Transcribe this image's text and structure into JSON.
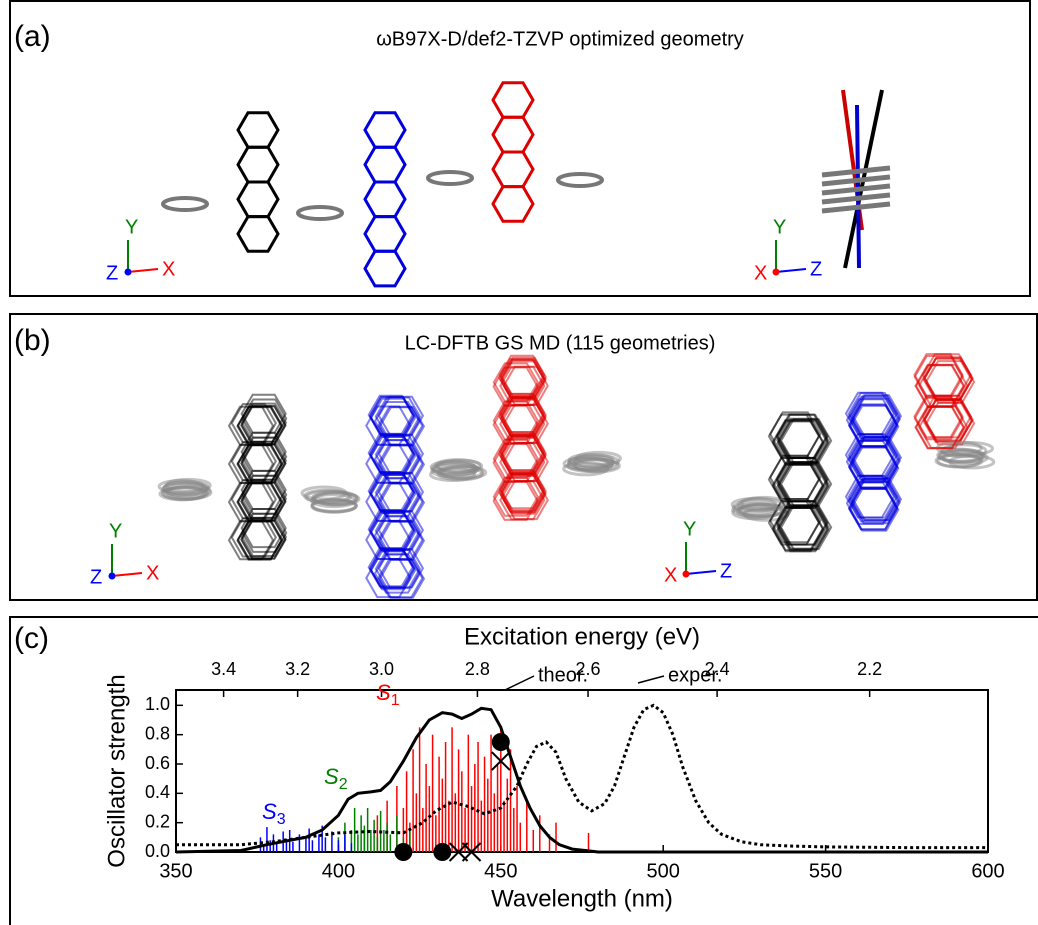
{
  "panel_a": {
    "label": "(a)",
    "title": "ωB97X-D/def2-TZVP optimized geometry",
    "axes_front": [
      "Y",
      "Z",
      "X"
    ],
    "axes_side": [
      "Y",
      "X",
      "Z"
    ]
  },
  "panel_b": {
    "label": "(b)",
    "title": "LC-DFTB GS MD (115 geometries)",
    "axes_front": [
      "Y",
      "Z",
      "X"
    ],
    "axes_side": [
      "Y",
      "X",
      "Z"
    ]
  },
  "chart_data": {
    "type": "spectrum",
    "panel_label": "(c)",
    "x_label": "Wavelength (nm)",
    "y_label": "Oscillator strength",
    "x2_label": "Excitation energy (eV)",
    "xlim": [
      350,
      600
    ],
    "xticks": [
      350,
      400,
      450,
      500,
      550,
      600
    ],
    "ylim": [
      0,
      1.05
    ],
    "yticks": [
      {
        "value": 0,
        "label": "0.0"
      },
      0.2,
      0.4,
      0.6,
      0.8,
      {
        "value": 1,
        "label": "1.0"
      }
    ],
    "x2ticks": [
      3.4,
      3.2,
      {
        "value": 3,
        "label": "3.0"
      },
      2.8,
      2.6,
      2.4,
      2.2
    ],
    "series": [
      {
        "name": "theor.",
        "color": "#000000",
        "dash": "solid",
        "x": [
          350,
          370,
          378,
          385,
          390,
          395,
          400,
          403,
          406,
          410,
          413,
          416,
          420,
          424,
          428,
          432,
          435,
          438,
          441,
          444,
          447,
          450,
          453,
          456,
          459,
          462,
          465,
          468,
          472,
          476,
          480,
          490,
          500,
          550,
          600
        ],
        "values": [
          0,
          0.01,
          0.05,
          0.08,
          0.1,
          0.15,
          0.25,
          0.36,
          0.4,
          0.41,
          0.42,
          0.48,
          0.62,
          0.78,
          0.9,
          0.95,
          0.94,
          0.91,
          0.94,
          0.98,
          0.97,
          0.85,
          0.65,
          0.45,
          0.3,
          0.18,
          0.1,
          0.05,
          0.02,
          0.01,
          0,
          0,
          0,
          0,
          0
        ]
      },
      {
        "name": "exper.",
        "color": "#000000",
        "dash": "dotted",
        "x": [
          350,
          370,
          380,
          390,
          400,
          410,
          420,
          426,
          430,
          435,
          440,
          445,
          450,
          455,
          458,
          461,
          464,
          467,
          470,
          474,
          478,
          482,
          485,
          488,
          491,
          494,
          497,
          500,
          503,
          506,
          510,
          514,
          518,
          524,
          530,
          540,
          550,
          575,
          600
        ],
        "values": [
          0.05,
          0.05,
          0.07,
          0.1,
          0.13,
          0.14,
          0.13,
          0.2,
          0.28,
          0.34,
          0.31,
          0.26,
          0.3,
          0.45,
          0.6,
          0.72,
          0.75,
          0.68,
          0.5,
          0.34,
          0.28,
          0.33,
          0.45,
          0.65,
          0.85,
          0.97,
          1.0,
          0.95,
          0.8,
          0.58,
          0.35,
          0.2,
          0.12,
          0.07,
          0.05,
          0.04,
          0.035,
          0.03,
          0.03
        ]
      }
    ],
    "sticks": [
      {
        "label": "S",
        "subscript": "1",
        "color": "#ff0000",
        "x": [
          408,
          412,
          415,
          418,
          420,
          421,
          422,
          423,
          424,
          425,
          426,
          427,
          428,
          429,
          430,
          431,
          432,
          433,
          434,
          435,
          436,
          437,
          438,
          439,
          440,
          441,
          442,
          443,
          444,
          445,
          446,
          447,
          448,
          449,
          450,
          451,
          452,
          453,
          454,
          455,
          456,
          458,
          460,
          462,
          465,
          467,
          477
        ],
        "values": [
          0.15,
          0.25,
          0.35,
          0.45,
          0.3,
          0.55,
          0.2,
          0.7,
          0.4,
          0.85,
          0.3,
          0.6,
          0.45,
          0.8,
          0.25,
          0.65,
          0.5,
          0.75,
          0.35,
          0.85,
          0.4,
          0.7,
          0.55,
          0.3,
          0.8,
          0.45,
          0.6,
          0.75,
          0.35,
          0.65,
          0.5,
          0.8,
          0.4,
          0.6,
          0.85,
          0.35,
          0.5,
          0.7,
          0.3,
          0.45,
          0.2,
          0.35,
          0.15,
          0.25,
          0.12,
          0.2,
          0.13
        ]
      },
      {
        "label": "S",
        "subscript": "2",
        "color": "#008000",
        "x": [
          400,
          402,
          404,
          405,
          406,
          407,
          408,
          409,
          410,
          411,
          412,
          413,
          414,
          415,
          416,
          418,
          420,
          422
        ],
        "values": [
          0.1,
          0.2,
          0.15,
          0.3,
          0.12,
          0.25,
          0.18,
          0.3,
          0.15,
          0.22,
          0.1,
          0.28,
          0.15,
          0.2,
          0.12,
          0.25,
          0.1,
          0.15
        ]
      },
      {
        "label": "S",
        "subscript": "3",
        "color": "#0000ff",
        "x": [
          376,
          377,
          378,
          379,
          380,
          381,
          383,
          384,
          385,
          386,
          388,
          390,
          391,
          392,
          394,
          395,
          396,
          398,
          400,
          402,
          404
        ],
        "values": [
          0.1,
          0.05,
          0.17,
          0.08,
          0.12,
          0.06,
          0.14,
          0.09,
          0.15,
          0.07,
          0.12,
          0.1,
          0.16,
          0.08,
          0.12,
          0.18,
          0.1,
          0.14,
          0.08,
          0.12,
          0.06
        ]
      }
    ],
    "circles": {
      "x": [
        420,
        432,
        450
      ],
      "values": [
        0,
        0,
        0.75
      ]
    },
    "crosses": {
      "x": [
        437,
        441,
        450
      ],
      "values": [
        0,
        0,
        0.62
      ]
    }
  }
}
